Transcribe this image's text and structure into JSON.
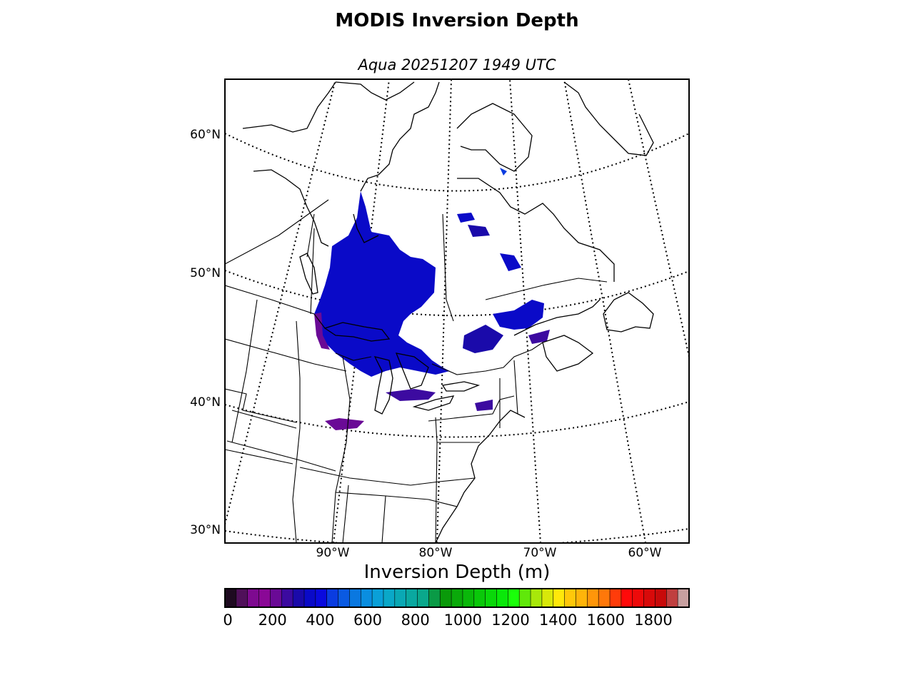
{
  "figure": {
    "title": "MODIS Inversion Depth",
    "subtitle": "Aqua 20251207 1949 UTC"
  },
  "map": {
    "lat_labels": [
      "60°N",
      "50°N",
      "40°N",
      "30°N"
    ],
    "lon_labels": [
      "90°W",
      "80°W",
      "70°W",
      "60°W"
    ],
    "projection": "conic"
  },
  "colorbar": {
    "label": "Inversion Depth (m)",
    "range": [
      0,
      1950
    ],
    "bin_width": 50,
    "tick_values": [
      0,
      200,
      400,
      600,
      800,
      1000,
      1200,
      1400,
      1600,
      1800
    ],
    "tick_labels": [
      "0",
      "200",
      "400",
      "600",
      "800",
      "1000",
      "1200",
      "1400",
      "1600",
      "1800"
    ],
    "colors": [
      "#1e0a20",
      "#50105a",
      "#7e0a90",
      "#8a0896",
      "#6a0a96",
      "#3c0aa0",
      "#1a0aaa",
      "#0a0ac8",
      "#0a0ade",
      "#0a3ce0",
      "#0a5ae2",
      "#0a78e0",
      "#0a8ee0",
      "#0aa0d8",
      "#0aa8c8",
      "#0aa8b4",
      "#0aa8a0",
      "#0aa88c",
      "#0a9a46",
      "#0a9a0a",
      "#0aaa0a",
      "#0ab80a",
      "#0ac80a",
      "#0ad80a",
      "#0ae80a",
      "#1aff0a",
      "#60e80a",
      "#a8e80a",
      "#d8e80a",
      "#ffe80a",
      "#ffc80a",
      "#ffb40a",
      "#ff960a",
      "#ff780a",
      "#ff3c0a",
      "#ff0a0a",
      "#ee0a0a",
      "#d80a0a",
      "#c80a0a",
      "#c04040",
      "#c8a0a0"
    ]
  }
}
